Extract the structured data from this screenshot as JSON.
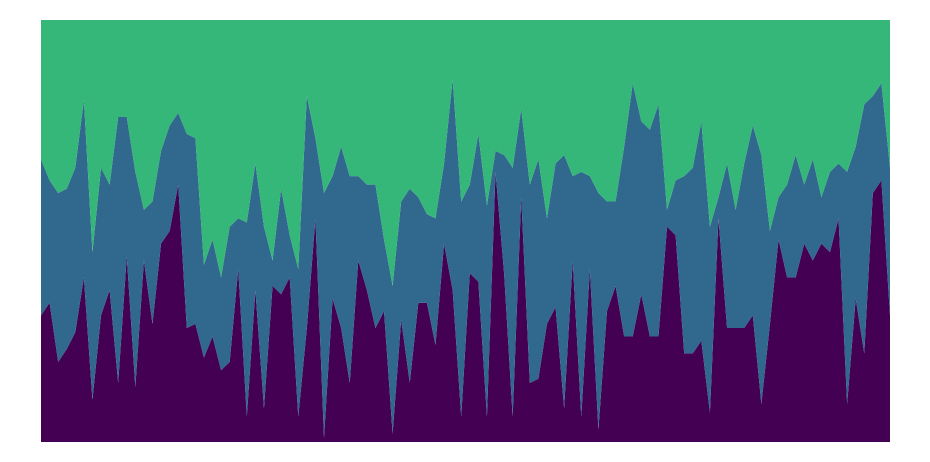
{
  "chart_data": {
    "type": "area",
    "stacked": "normalized",
    "legend": "none",
    "grid": false,
    "axes_visible": false,
    "ylim": [
      0,
      1
    ],
    "x": [
      0,
      1,
      2,
      3,
      4,
      5,
      6,
      7,
      8,
      9,
      10,
      11,
      12,
      13,
      14,
      15,
      16,
      17,
      18,
      19,
      20,
      21,
      22,
      23,
      24,
      25,
      26,
      27,
      28,
      29,
      30,
      31,
      32,
      33,
      34,
      35,
      36,
      37,
      38,
      39,
      40,
      41,
      42,
      43,
      44,
      45,
      46,
      47,
      48,
      49,
      50,
      51,
      52,
      53,
      54,
      55,
      56,
      57,
      58,
      59,
      60,
      61,
      62,
      63,
      64,
      65,
      66,
      67,
      68,
      69,
      70,
      71,
      72,
      73,
      74,
      75,
      76,
      77,
      78,
      79,
      80,
      81,
      82,
      83,
      84,
      85,
      86,
      87,
      88,
      89,
      90,
      91,
      92,
      93,
      94,
      95,
      96,
      97,
      98,
      99
    ],
    "series": [
      {
        "color": "#440154",
        "values": [
          0.3,
          0.33,
          0.19,
          0.22,
          0.26,
          0.39,
          0.1,
          0.3,
          0.36,
          0.14,
          0.44,
          0.13,
          0.43,
          0.28,
          0.47,
          0.5,
          0.61,
          0.27,
          0.28,
          0.2,
          0.25,
          0.17,
          0.19,
          0.41,
          0.06,
          0.36,
          0.08,
          0.37,
          0.35,
          0.39,
          0.06,
          0.27,
          0.53,
          0.01,
          0.34,
          0.27,
          0.14,
          0.43,
          0.36,
          0.27,
          0.31,
          0.02,
          0.29,
          0.14,
          0.33,
          0.33,
          0.23,
          0.47,
          0.36,
          0.06,
          0.4,
          0.38,
          0.06,
          0.64,
          0.4,
          0.06,
          0.58,
          0.14,
          0.15,
          0.28,
          0.32,
          0.08,
          0.43,
          0.06,
          0.41,
          0.03,
          0.31,
          0.37,
          0.25,
          0.25,
          0.35,
          0.25,
          0.25,
          0.51,
          0.49,
          0.21,
          0.21,
          0.24,
          0.07,
          0.53,
          0.27,
          0.27,
          0.27,
          0.3,
          0.09,
          0.28,
          0.48,
          0.39,
          0.39,
          0.47,
          0.43,
          0.47,
          0.45,
          0.53,
          0.09,
          0.34,
          0.21,
          0.59,
          0.62,
          0.3
        ]
      },
      {
        "color": "#31688e",
        "values": [
          0.37,
          0.29,
          0.4,
          0.38,
          0.39,
          0.42,
          0.35,
          0.35,
          0.25,
          0.63,
          0.33,
          0.51,
          0.12,
          0.29,
          0.22,
          0.25,
          0.17,
          0.46,
          0.44,
          0.22,
          0.23,
          0.22,
          0.32,
          0.12,
          0.46,
          0.3,
          0.43,
          0.06,
          0.25,
          0.1,
          0.35,
          0.55,
          0.19,
          0.58,
          0.29,
          0.43,
          0.49,
          0.2,
          0.25,
          0.34,
          0.17,
          0.35,
          0.28,
          0.46,
          0.25,
          0.21,
          0.3,
          0.19,
          0.5,
          0.51,
          0.21,
          0.35,
          0.5,
          0.05,
          0.28,
          0.59,
          0.21,
          0.47,
          0.52,
          0.25,
          0.34,
          0.6,
          0.2,
          0.58,
          0.22,
          0.56,
          0.26,
          0.2,
          0.45,
          0.6,
          0.41,
          0.49,
          0.55,
          0.04,
          0.13,
          0.42,
          0.44,
          0.52,
          0.44,
          0.05,
          0.39,
          0.28,
          0.39,
          0.45,
          0.59,
          0.22,
          0.1,
          0.22,
          0.29,
          0.14,
          0.24,
          0.11,
          0.19,
          0.13,
          0.55,
          0.36,
          0.59,
          0.23,
          0.23,
          0.35
        ]
      },
      {
        "color": "#35b779",
        "values": [
          0.33,
          0.38,
          0.41,
          0.4,
          0.35,
          0.19,
          0.55,
          0.35,
          0.39,
          0.23,
          0.23,
          0.36,
          0.45,
          0.43,
          0.31,
          0.25,
          0.22,
          0.27,
          0.28,
          0.58,
          0.52,
          0.61,
          0.49,
          0.47,
          0.48,
          0.34,
          0.49,
          0.57,
          0.4,
          0.51,
          0.59,
          0.18,
          0.28,
          0.41,
          0.37,
          0.3,
          0.37,
          0.37,
          0.39,
          0.39,
          0.52,
          0.63,
          0.43,
          0.4,
          0.42,
          0.46,
          0.47,
          0.34,
          0.14,
          0.43,
          0.39,
          0.27,
          0.44,
          0.31,
          0.32,
          0.35,
          0.21,
          0.39,
          0.33,
          0.47,
          0.34,
          0.32,
          0.37,
          0.36,
          0.37,
          0.41,
          0.43,
          0.43,
          0.3,
          0.15,
          0.24,
          0.26,
          0.2,
          0.45,
          0.38,
          0.37,
          0.35,
          0.24,
          0.49,
          0.42,
          0.34,
          0.45,
          0.34,
          0.25,
          0.32,
          0.5,
          0.42,
          0.39,
          0.32,
          0.39,
          0.33,
          0.42,
          0.36,
          0.34,
          0.36,
          0.3,
          0.2,
          0.18,
          0.15,
          0.35
        ]
      }
    ]
  }
}
